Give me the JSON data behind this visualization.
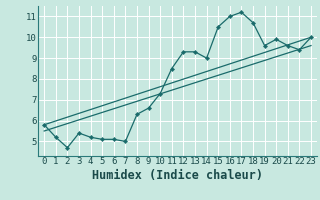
{
  "title": "",
  "xlabel": "Humidex (Indice chaleur)",
  "x_data": [
    0,
    1,
    2,
    3,
    4,
    5,
    6,
    7,
    8,
    9,
    10,
    11,
    12,
    13,
    14,
    15,
    16,
    17,
    18,
    19,
    20,
    21,
    22,
    23
  ],
  "y_main": [
    5.8,
    5.2,
    4.7,
    5.4,
    5.2,
    5.1,
    5.1,
    5.0,
    6.3,
    6.6,
    7.3,
    8.5,
    9.3,
    9.3,
    9.0,
    10.5,
    11.0,
    11.2,
    10.7,
    9.6,
    9.9,
    9.6,
    9.4,
    10.0
  ],
  "trend1_x": [
    0,
    23
  ],
  "trend1_y": [
    5.8,
    10.0
  ],
  "trend2_x": [
    0,
    23
  ],
  "trend2_y": [
    5.5,
    9.6
  ],
  "xlim": [
    -0.5,
    23.5
  ],
  "ylim": [
    4.3,
    11.5
  ],
  "yticks": [
    5,
    6,
    7,
    8,
    9,
    10,
    11
  ],
  "xticks": [
    0,
    1,
    2,
    3,
    4,
    5,
    6,
    7,
    8,
    9,
    10,
    11,
    12,
    13,
    14,
    15,
    16,
    17,
    18,
    19,
    20,
    21,
    22,
    23
  ],
  "bg_color": "#c8e8e0",
  "line_color": "#1a6b6b",
  "grid_color": "#ffffff",
  "tick_label_fontsize": 6.5,
  "xlabel_fontsize": 8.5,
  "axis_color": "#2a7a7a"
}
